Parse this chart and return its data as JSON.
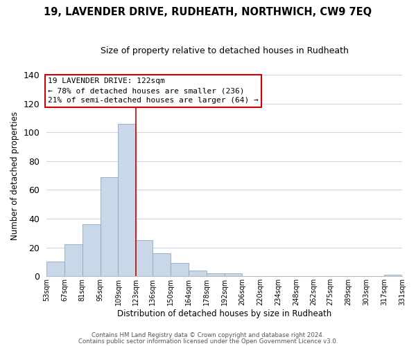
{
  "title": "19, LAVENDER DRIVE, RUDHEATH, NORTHWICH, CW9 7EQ",
  "subtitle": "Size of property relative to detached houses in Rudheath",
  "xlabel": "Distribution of detached houses by size in Rudheath",
  "ylabel": "Number of detached properties",
  "bar_color": "#c8d8e8",
  "bar_edge_color": "#8aaac0",
  "vline_x": 123,
  "vline_color": "#cc0000",
  "bins": [
    53,
    67,
    81,
    95,
    109,
    123,
    136,
    150,
    164,
    178,
    192,
    206,
    220,
    234,
    248,
    262,
    275,
    289,
    303,
    317,
    331
  ],
  "counts": [
    10,
    22,
    36,
    69,
    106,
    25,
    16,
    9,
    4,
    2,
    2,
    0,
    0,
    0,
    0,
    0,
    0,
    0,
    0,
    1
  ],
  "tick_labels": [
    "53sqm",
    "67sqm",
    "81sqm",
    "95sqm",
    "109sqm",
    "123sqm",
    "136sqm",
    "150sqm",
    "164sqm",
    "178sqm",
    "192sqm",
    "206sqm",
    "220sqm",
    "234sqm",
    "248sqm",
    "262sqm",
    "275sqm",
    "289sqm",
    "303sqm",
    "317sqm",
    "331sqm"
  ],
  "annotation_title": "19 LAVENDER DRIVE: 122sqm",
  "annotation_line1": "← 78% of detached houses are smaller (236)",
  "annotation_line2": "21% of semi-detached houses are larger (64) →",
  "annotation_box_color": "#ffffff",
  "annotation_box_edge": "#cc0000",
  "ylim": [
    0,
    140
  ],
  "footer1": "Contains HM Land Registry data © Crown copyright and database right 2024.",
  "footer2": "Contains public sector information licensed under the Open Government Licence v3.0.",
  "background_color": "#ffffff",
  "grid_color": "#ccd8e4"
}
